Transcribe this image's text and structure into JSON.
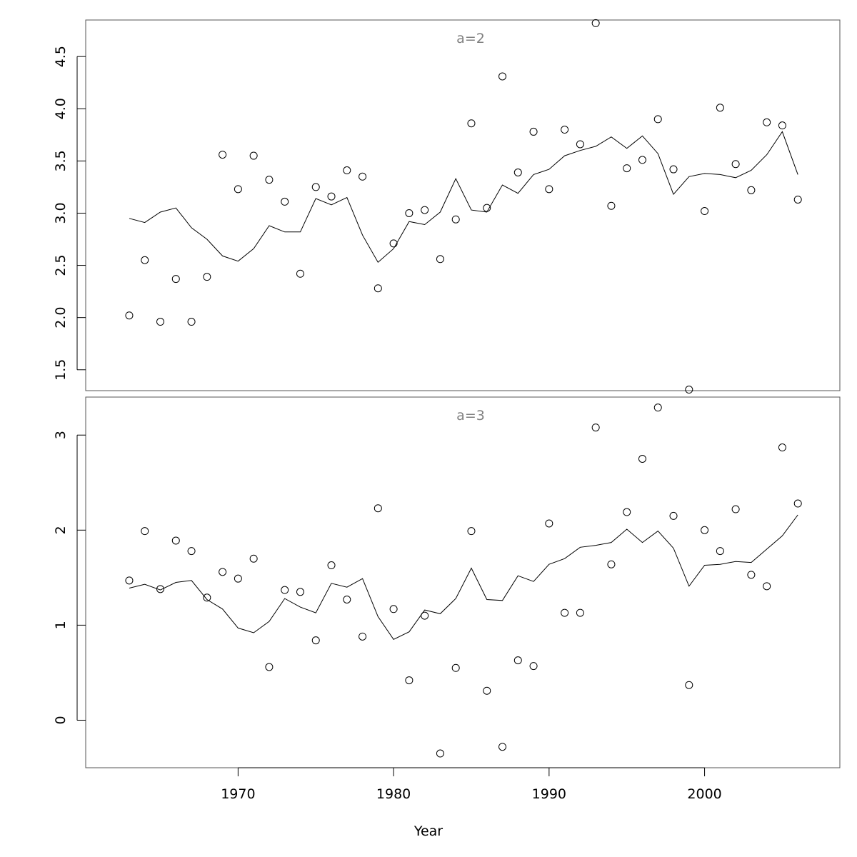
{
  "chart_data": {
    "type": "scatter",
    "xlabel": "Year",
    "x_ticks": [
      1970,
      1980,
      1990,
      2000
    ],
    "xlim": [
      1960.2,
      2008.7
    ],
    "x": [
      1963,
      1964,
      1965,
      1966,
      1967,
      1968,
      1969,
      1970,
      1971,
      1972,
      1973,
      1974,
      1975,
      1976,
      1977,
      1978,
      1979,
      1980,
      1981,
      1982,
      1983,
      1984,
      1985,
      1986,
      1987,
      1988,
      1989,
      1990,
      1991,
      1992,
      1993,
      1994,
      1995,
      1996,
      1997,
      1998,
      1999,
      2000,
      2001,
      2002,
      2003,
      2004,
      2005,
      2006
    ],
    "panels": [
      {
        "strip_label": "a=2",
        "ylim": [
          1.3,
          4.85
        ],
        "y_ticks": [
          "1.5",
          "2.0",
          "2.5",
          "3.0",
          "3.5",
          "4.0",
          "4.5"
        ],
        "points": [
          2.02,
          2.55,
          1.96,
          2.37,
          1.96,
          2.39,
          3.56,
          3.23,
          3.55,
          3.32,
          3.11,
          2.42,
          3.25,
          3.16,
          3.41,
          3.35,
          2.28,
          2.71,
          3.0,
          3.03,
          2.56,
          2.94,
          3.86,
          3.05,
          4.31,
          3.39,
          3.78,
          3.23,
          3.8,
          3.66,
          4.82,
          3.07,
          3.43,
          3.51,
          3.9,
          3.42,
          1.31,
          3.02,
          4.01,
          3.47,
          3.22,
          3.87,
          3.84,
          3.13
        ],
        "fitted": [
          2.95,
          2.91,
          3.01,
          3.05,
          2.86,
          2.75,
          2.59,
          2.54,
          2.66,
          2.88,
          2.82,
          2.82,
          3.14,
          3.08,
          3.15,
          2.79,
          2.53,
          2.66,
          2.92,
          2.89,
          3.01,
          3.33,
          3.03,
          3.01,
          3.27,
          3.19,
          3.37,
          3.42,
          3.55,
          3.6,
          3.64,
          3.73,
          3.62,
          3.74,
          3.57,
          3.18,
          3.35,
          3.38,
          3.37,
          3.34,
          3.41,
          3.56,
          3.78,
          3.37
        ]
      },
      {
        "strip_label": "a=3",
        "ylim": [
          -0.5,
          3.4
        ],
        "y_ticks": [
          "0",
          "1",
          "2",
          "3"
        ],
        "points": [
          1.47,
          1.99,
          1.38,
          1.89,
          1.78,
          1.29,
          1.56,
          1.49,
          1.7,
          0.56,
          1.37,
          1.35,
          0.84,
          1.63,
          1.27,
          0.88,
          2.23,
          1.17,
          0.42,
          1.1,
          -0.35,
          0.55,
          1.99,
          0.31,
          -0.28,
          0.63,
          0.57,
          2.07,
          1.13,
          1.13,
          3.08,
          1.64,
          2.19,
          2.75,
          3.29,
          2.15,
          0.37,
          2.0,
          1.78,
          2.22,
          1.53,
          1.41,
          2.87,
          2.28
        ],
        "fitted": [
          1.39,
          1.43,
          1.37,
          1.45,
          1.47,
          1.27,
          1.17,
          0.97,
          0.92,
          1.04,
          1.28,
          1.19,
          1.13,
          1.44,
          1.4,
          1.49,
          1.09,
          0.85,
          0.93,
          1.16,
          1.12,
          1.28,
          1.6,
          1.27,
          1.26,
          1.52,
          1.46,
          1.64,
          1.7,
          1.82,
          1.84,
          1.87,
          2.01,
          1.87,
          1.99,
          1.81,
          1.41,
          1.63,
          1.64,
          1.67,
          1.66,
          1.8,
          1.94,
          2.16
        ]
      }
    ]
  }
}
